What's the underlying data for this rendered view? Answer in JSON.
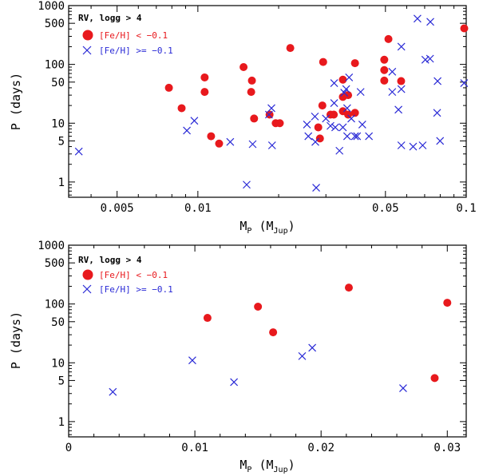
{
  "colors": {
    "red": "#e8191d",
    "blue": "#2a2ad6",
    "axis": "#000000"
  },
  "chart_data": [
    {
      "type": "scatter",
      "xscale": "log",
      "yscale": "log",
      "xlim": [
        0.0033,
        0.1
      ],
      "ylim": [
        0.55,
        1000
      ],
      "xticks": [
        0.005,
        0.01,
        0.05,
        0.1
      ],
      "xtick_labels": [
        "0.005",
        "0.01",
        "0.05",
        "0.1"
      ],
      "yticks": [
        1,
        5,
        10,
        50,
        100,
        500,
        1000
      ],
      "ytick_labels": [
        "1",
        "5",
        "10",
        "50",
        "100",
        "500",
        "1000"
      ],
      "xlabel": {
        "main": "M",
        "sub1": "P",
        "mid": " (M",
        "sub2": "Jup",
        "end": ")"
      },
      "ylabel": "P (days)",
      "legend": {
        "title": "RV, logg > 4",
        "placement": "top-left",
        "entries": [
          {
            "label": "[Fe/H] < −0.1",
            "marker": "circle",
            "color": "#e8191d"
          },
          {
            "label": "[Fe/H] >= −0.1",
            "marker": "x",
            "color": "#2a2ad6"
          }
        ]
      },
      "series": [
        {
          "name": "[Fe/H] < −0.1",
          "marker": "circle",
          "color": "#e8191d",
          "points": [
            [
              0.0078,
              40
            ],
            [
              0.0087,
              18
            ],
            [
              0.0106,
              60
            ],
            [
              0.0106,
              34
            ],
            [
              0.0112,
              6
            ],
            [
              0.012,
              4.5
            ],
            [
              0.0148,
              90
            ],
            [
              0.0159,
              53
            ],
            [
              0.0158,
              34
            ],
            [
              0.0162,
              12
            ],
            [
              0.0185,
              14
            ],
            [
              0.0195,
              10
            ],
            [
              0.0202,
              10
            ],
            [
              0.0221,
              190
            ],
            [
              0.0281,
              8.5
            ],
            [
              0.0285,
              5.5
            ],
            [
              0.0293,
              110
            ],
            [
              0.0291,
              20
            ],
            [
              0.0312,
              14
            ],
            [
              0.0321,
              14
            ],
            [
              0.0347,
              55
            ],
            [
              0.0347,
              28
            ],
            [
              0.0347,
              16
            ],
            [
              0.0363,
              30
            ],
            [
              0.0363,
              14
            ],
            [
              0.0385,
              105
            ],
            [
              0.0385,
              15
            ],
            [
              0.0495,
              120
            ],
            [
              0.0495,
              80
            ],
            [
              0.0495,
              53
            ],
            [
              0.0513,
              270
            ],
            [
              0.0572,
              52
            ],
            [
              0.0983,
              410
            ]
          ]
        },
        {
          "name": "[Fe/H] >= −0.1",
          "marker": "x",
          "color": "#2a2ad6",
          "points": [
            [
              0.0036,
              3.3
            ],
            [
              0.0091,
              7.5
            ],
            [
              0.0097,
              11
            ],
            [
              0.0132,
              4.8
            ],
            [
              0.0152,
              0.9
            ],
            [
              0.016,
              4.4
            ],
            [
              0.0184,
              14
            ],
            [
              0.0188,
              18
            ],
            [
              0.0189,
              4.2
            ],
            [
              0.0255,
              9.5
            ],
            [
              0.0258,
              6
            ],
            [
              0.0273,
              13
            ],
            [
              0.0274,
              4.8
            ],
            [
              0.0276,
              0.8
            ],
            [
              0.03,
              12
            ],
            [
              0.0312,
              9
            ],
            [
              0.0322,
              48
            ],
            [
              0.0322,
              22
            ],
            [
              0.0325,
              8.5
            ],
            [
              0.0337,
              3.4
            ],
            [
              0.0347,
              8.5
            ],
            [
              0.0351,
              33
            ],
            [
              0.0357,
              38
            ],
            [
              0.036,
              18
            ],
            [
              0.036,
              6
            ],
            [
              0.0366,
              60
            ],
            [
              0.0373,
              12
            ],
            [
              0.0385,
              6
            ],
            [
              0.0392,
              6
            ],
            [
              0.0404,
              34
            ],
            [
              0.041,
              9.5
            ],
            [
              0.0434,
              6
            ],
            [
              0.053,
              34
            ],
            [
              0.053,
              75
            ],
            [
              0.0559,
              17
            ],
            [
              0.0573,
              200
            ],
            [
              0.0573,
              38
            ],
            [
              0.0573,
              4.2
            ],
            [
              0.0634,
              4
            ],
            [
              0.0658,
              600
            ],
            [
              0.0688,
              4.2
            ],
            [
              0.0704,
              120
            ],
            [
              0.0733,
              125
            ],
            [
              0.0735,
              530
            ],
            [
              0.0782,
              52
            ],
            [
              0.0779,
              15
            ],
            [
              0.0799,
              5
            ],
            [
              0.0982,
              48
            ]
          ]
        }
      ]
    },
    {
      "type": "scatter",
      "xscale": "linear",
      "yscale": "log",
      "xlim": [
        0,
        0.0315
      ],
      "ylim": [
        0.55,
        1000
      ],
      "xticks": [
        0,
        0.01,
        0.02,
        0.03
      ],
      "xtick_labels": [
        "0",
        "0.01",
        "0.02",
        "0.03"
      ],
      "xminor": 0.002,
      "yticks": [
        1,
        5,
        10,
        50,
        100,
        500,
        1000
      ],
      "ytick_labels": [
        "1",
        "5",
        "10",
        "50",
        "100",
        "500",
        "1000"
      ],
      "xlabel": {
        "main": "M",
        "sub1": "P",
        "mid": " (M",
        "sub2": "Jup",
        "end": ")"
      },
      "ylabel": "P (days)",
      "legend": {
        "title": "RV, logg > 4",
        "placement": "top-left",
        "entries": [
          {
            "label": "[Fe/H] < −0.1",
            "marker": "circle",
            "color": "#e8191d"
          },
          {
            "label": "[Fe/H] >= −0.1",
            "marker": "x",
            "color": "#2a2ad6"
          }
        ]
      },
      "series": [
        {
          "name": "[Fe/H] < −0.1",
          "marker": "circle",
          "color": "#e8191d",
          "points": [
            [
              0.011,
              58
            ],
            [
              0.015,
              90
            ],
            [
              0.0162,
              33
            ],
            [
              0.0222,
              190
            ],
            [
              0.029,
              5.5
            ],
            [
              0.03,
              105
            ]
          ]
        },
        {
          "name": "[Fe/H] >= −0.1",
          "marker": "x",
          "color": "#2a2ad6",
          "points": [
            [
              0.0035,
              3.2
            ],
            [
              0.0098,
              11
            ],
            [
              0.0131,
              4.7
            ],
            [
              0.0185,
              13
            ],
            [
              0.0193,
              18
            ],
            [
              0.0265,
              3.7
            ]
          ]
        }
      ]
    }
  ]
}
